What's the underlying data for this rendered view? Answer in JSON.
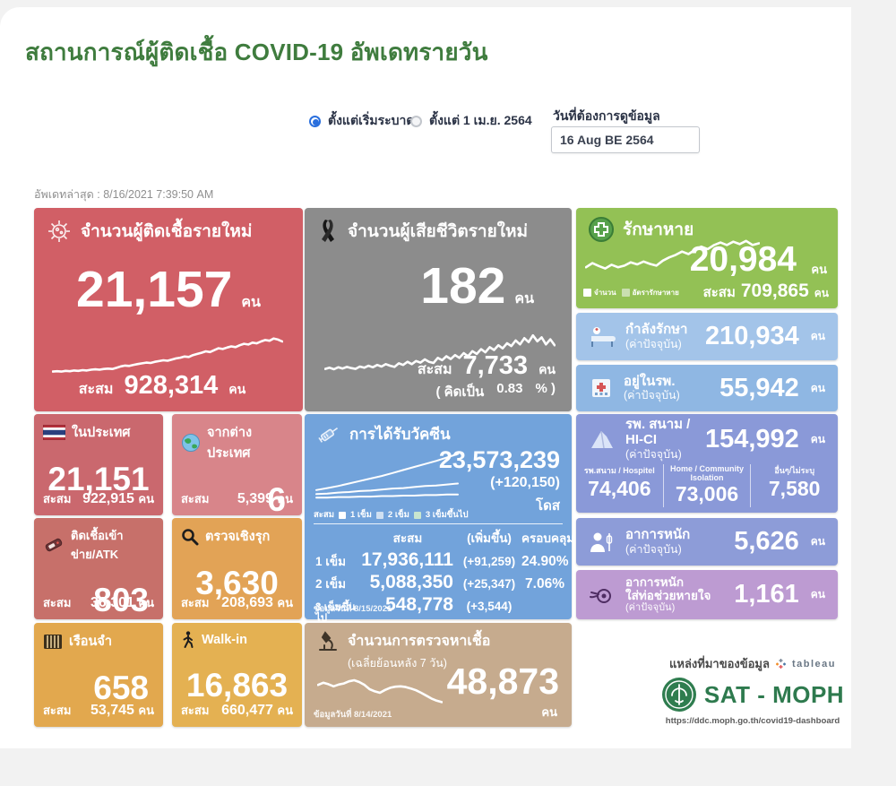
{
  "page": {
    "title": "สถานการณ์ผู้ติดเชื้อ COVID-19 อัพเดทรายวัน"
  },
  "controls": {
    "radio_outbreak_label": "ตั้งแต่เริ่มระบาด",
    "radio_april_label": "ตั้งแต่ 1 เม.ย. 2564",
    "date_label": "วันที่ต้องการดูข้อมูล",
    "date_value": "16 Aug BE 2564"
  },
  "last_update": "อัพเดทล่าสุด : 8/16/2021 7:39:50 AM",
  "labels": {
    "cumulative": "สะสม",
    "current_note": "(ค่าปัจจุบัน)"
  },
  "units": {
    "people": "คน",
    "dose": "โดส"
  },
  "colors": {
    "title_green": "#3f7c3e",
    "new_cases": "#d15f66",
    "deaths": "#8c8c8c",
    "recovered": "#93c155",
    "in_treatment": "#a3c4e9",
    "in_hospital": "#8fb7e3",
    "field_hospital": "#8a99d8",
    "severe": "#8d9cd8",
    "ventilator": "#bd9bd2",
    "domestic": "#ca686e",
    "abroad": "#d8858a",
    "atk": "#c7706a",
    "proactive": "#e2a356",
    "prison": "#e2a84e",
    "walkin": "#e4b152",
    "vaccine": "#72a3db",
    "tests": "#c6ab8e",
    "radio_accent": "#2a6fdd"
  },
  "cards": {
    "new_cases": {
      "title": "จำนวนผู้ติดเชื้อรายใหม่",
      "value": "21,157",
      "cum_value": "928,314",
      "spark": [
        8,
        9,
        8,
        10,
        9,
        11,
        10,
        12,
        11,
        13,
        14,
        13,
        15,
        16,
        15,
        18,
        22,
        24,
        23,
        26,
        28,
        30,
        32,
        31,
        34,
        36,
        38,
        37,
        40,
        43,
        45,
        48,
        47,
        52,
        55,
        58,
        62,
        60,
        65,
        70,
        68,
        72,
        75,
        73,
        78,
        82,
        80,
        85,
        83,
        88,
        92,
        90,
        96,
        93,
        88
      ]
    },
    "deaths": {
      "title": "จำนวนผู้เสียชีวิตรายใหม่",
      "value": "182",
      "cum_value": "7,733",
      "note_open": "( คิดเป็น",
      "note_pct": "0.83",
      "note_close": "% )",
      "spark": [
        10,
        13,
        9,
        14,
        11,
        15,
        12,
        10,
        16,
        13,
        18,
        14,
        20,
        16,
        22,
        18,
        15,
        24,
        20,
        28,
        22,
        30,
        26,
        34,
        28,
        25,
        38,
        32,
        42,
        35,
        45,
        38,
        50,
        42,
        55,
        48,
        60,
        52,
        65,
        58,
        70,
        62,
        75,
        68,
        82,
        72,
        88,
        78,
        95,
        80,
        90,
        72,
        85,
        70
      ]
    },
    "recovered": {
      "title": "รักษาหาย",
      "value": "20,984",
      "cum_value": "709,865",
      "legend": [
        "จำนวน",
        "อัตรารักษาหาย"
      ],
      "spark": [
        30,
        40,
        33,
        27,
        36,
        30,
        34,
        42,
        37,
        44,
        38,
        34,
        46,
        54,
        60,
        68,
        62,
        72,
        80,
        74,
        84,
        90,
        84,
        92,
        86,
        94,
        84,
        88
      ]
    },
    "in_treatment": {
      "title": "กำลังรักษา",
      "value": "210,934"
    },
    "in_hospital": {
      "title": "อยู่ในรพ.",
      "value": "55,942"
    },
    "field_hospital": {
      "title": "รพ. สนาม / HI-CI",
      "value": "154,992",
      "breakdown": [
        {
          "label": "รพ.สนาม / Hospitel",
          "value": "74,406"
        },
        {
          "label": "Home / Community Isolation",
          "value": "73,006"
        },
        {
          "label": "อื่นๆ/ไม่ระบุ",
          "value": "7,580"
        }
      ]
    },
    "severe": {
      "title": "อาการหนัก",
      "value": "5,626"
    },
    "ventilator": {
      "title": "อาการหนัก",
      "title2": "ใส่ท่อช่วยหายใจ",
      "value": "1,161"
    },
    "domestic": {
      "title": "ในประเทศ",
      "value": "21,151",
      "cum_value": "922,915"
    },
    "abroad": {
      "title": "จากต่างประเทศ",
      "value": "6",
      "cum_value": "5,399"
    },
    "atk": {
      "title": "ติดเชื้อเข้าข่าย/ATK",
      "value": "803",
      "cum_value": "36,301"
    },
    "proactive": {
      "title": "ตรวจเชิงรุก",
      "value": "3,630",
      "cum_value": "208,693"
    },
    "prison": {
      "title": "เรือนจำ",
      "value": "658",
      "cum_value": "53,745"
    },
    "walkin": {
      "title": "Walk-in",
      "value": "16,863",
      "cum_value": "660,477"
    },
    "vaccine": {
      "title": "การได้รับวัคซีน",
      "value": "23,573,239",
      "delta": "(+120,150)",
      "legend_prefix": "สะสม",
      "legend": [
        "1 เข็ม",
        "2 เข็ม",
        "3 เข็มขึ้นไป"
      ],
      "table": {
        "headers": [
          "สะสม",
          "(เพิ่มขึ้น)",
          "ครอบคลุม"
        ],
        "rows": [
          [
            "1 เข็ม",
            "17,936,111",
            "(+91,259)",
            "24.90%"
          ],
          [
            "2 เข็ม",
            "5,088,350",
            "(+25,347)",
            "7.06%"
          ],
          [
            "3 เข็มขึ้นไป",
            "548,778",
            "(+3,544)",
            ""
          ]
        ]
      },
      "date_note": "ข้อมูลวันที่ 8/15/2021",
      "spark": [
        [
          20,
          24,
          28,
          33,
          38,
          43,
          48,
          54,
          60,
          66,
          72,
          78,
          85,
          92
        ],
        [
          12,
          13,
          15,
          16,
          18,
          19,
          21,
          23,
          24,
          26,
          28,
          29,
          31,
          33
        ],
        [
          5,
          5,
          6,
          6,
          7,
          7,
          8,
          8,
          9,
          9,
          10,
          10,
          11,
          11
        ]
      ]
    },
    "tests": {
      "title": "จำนวนการตรวจหาเชื้อ",
      "subtitle": "(เฉลี่ยย้อนหลัง 7 วัน)",
      "value": "48,873",
      "date_note": "ข้อมูลวันที่ 8/14/2021",
      "spark": [
        62,
        68,
        64,
        58,
        63,
        66,
        72,
        75,
        70,
        62,
        50,
        44,
        40,
        48,
        54,
        57,
        58,
        56,
        52,
        47,
        40,
        32,
        24,
        18,
        14
      ]
    }
  },
  "source": {
    "label": "แหล่งที่มาของข้อมูล",
    "tableau": "tableau",
    "logo_text": "SAT - MOPH",
    "url": "https://ddc.moph.go.th/covid19-dashboard"
  }
}
